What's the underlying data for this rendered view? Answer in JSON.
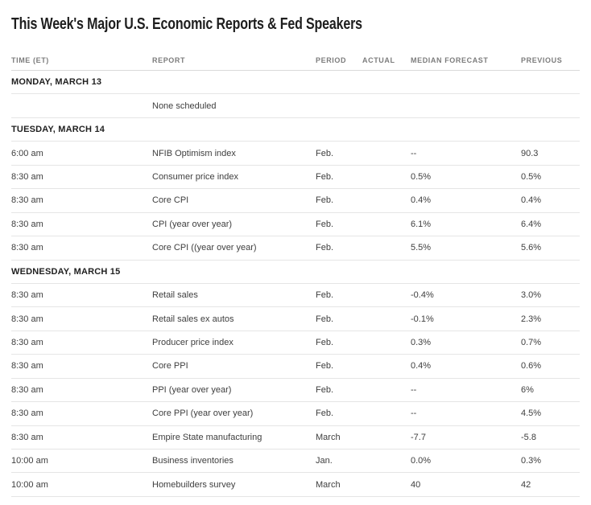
{
  "title": "This Week's Major U.S. Economic Reports & Fed Speakers",
  "table": {
    "headers": [
      "TIME (ET)",
      "REPORT",
      "PERIOD",
      "ACTUAL",
      "MEDIAN FORECAST",
      "PREVIOUS"
    ],
    "rows": [
      {
        "type": "day",
        "label": "MONDAY, MARCH 13"
      },
      {
        "type": "data",
        "time": "",
        "report": "None scheduled",
        "period": "",
        "actual": "",
        "forecast": "",
        "previous": ""
      },
      {
        "type": "day",
        "label": "TUESDAY, MARCH 14"
      },
      {
        "type": "data",
        "time": "6:00 am",
        "report": "NFIB Optimism index",
        "period": "Feb.",
        "actual": "",
        "forecast": "--",
        "previous": "90.3"
      },
      {
        "type": "data",
        "time": "8:30 am",
        "report": "Consumer price index",
        "period": "Feb.",
        "actual": "",
        "forecast": "0.5%",
        "previous": "0.5%"
      },
      {
        "type": "data",
        "time": "8:30 am",
        "report": "Core CPI",
        "period": "Feb.",
        "actual": "",
        "forecast": "0.4%",
        "previous": "0.4%"
      },
      {
        "type": "data",
        "time": "8:30 am",
        "report": "CPI (year over year)",
        "period": "Feb.",
        "actual": "",
        "forecast": "6.1%",
        "previous": "6.4%"
      },
      {
        "type": "data",
        "time": "8:30 am",
        "report": "Core CPI ((year over year)",
        "period": "Feb.",
        "actual": "",
        "forecast": "5.5%",
        "previous": "5.6%"
      },
      {
        "type": "day",
        "label": "WEDNESDAY, MARCH 15"
      },
      {
        "type": "data",
        "time": "8:30 am",
        "report": "Retail sales",
        "period": "Feb.",
        "actual": "",
        "forecast": "-0.4%",
        "previous": "3.0%"
      },
      {
        "type": "data",
        "time": "8:30 am",
        "report": "Retail sales ex autos",
        "period": "Feb.",
        "actual": "",
        "forecast": "-0.1%",
        "previous": "2.3%"
      },
      {
        "type": "data",
        "time": "8:30 am",
        "report": "Producer price index",
        "period": "Feb.",
        "actual": "",
        "forecast": "0.3%",
        "previous": "0.7%"
      },
      {
        "type": "data",
        "time": "8:30 am",
        "report": "Core PPI",
        "period": "Feb.",
        "actual": "",
        "forecast": "0.4%",
        "previous": "0.6%"
      },
      {
        "type": "data",
        "time": "8:30 am",
        "report": "PPI (year over year)",
        "period": "Feb.",
        "actual": "",
        "forecast": "--",
        "previous": "6%"
      },
      {
        "type": "data",
        "time": "8:30 am",
        "report": "Core PPI (year over year)",
        "period": "Feb.",
        "actual": "",
        "forecast": "--",
        "previous": "4.5%"
      },
      {
        "type": "data",
        "time": "8:30 am",
        "report": "Empire State manufacturing",
        "period": "March",
        "actual": "",
        "forecast": "-7.7",
        "previous": "-5.8"
      },
      {
        "type": "data",
        "time": "10:00 am",
        "report": "Business inventories",
        "period": "Jan.",
        "actual": "",
        "forecast": "0.0%",
        "previous": "0.3%"
      },
      {
        "type": "data",
        "time": "10:00 am",
        "report": "Homebuilders survey",
        "period": "March",
        "actual": "",
        "forecast": "40",
        "previous": "42"
      }
    ]
  },
  "chart_data": {
    "type": "table",
    "title": "This Week's Major U.S. Economic Reports & Fed Speakers",
    "columns": [
      "TIME (ET)",
      "REPORT",
      "PERIOD",
      "ACTUAL",
      "MEDIAN FORECAST",
      "PREVIOUS"
    ],
    "sections": [
      {
        "day": "MONDAY, MARCH 13",
        "entries": [
          [
            "",
            "None scheduled",
            "",
            "",
            "",
            ""
          ]
        ]
      },
      {
        "day": "TUESDAY, MARCH 14",
        "entries": [
          [
            "6:00 am",
            "NFIB Optimism index",
            "Feb.",
            "",
            "--",
            "90.3"
          ],
          [
            "8:30 am",
            "Consumer price index",
            "Feb.",
            "",
            "0.5%",
            "0.5%"
          ],
          [
            "8:30 am",
            "Core CPI",
            "Feb.",
            "",
            "0.4%",
            "0.4%"
          ],
          [
            "8:30 am",
            "CPI (year over year)",
            "Feb.",
            "",
            "6.1%",
            "6.4%"
          ],
          [
            "8:30 am",
            "Core CPI ((year over year)",
            "Feb.",
            "",
            "5.5%",
            "5.6%"
          ]
        ]
      },
      {
        "day": "WEDNESDAY, MARCH 15",
        "entries": [
          [
            "8:30 am",
            "Retail sales",
            "Feb.",
            "",
            "-0.4%",
            "3.0%"
          ],
          [
            "8:30 am",
            "Retail sales ex autos",
            "Feb.",
            "",
            "-0.1%",
            "2.3%"
          ],
          [
            "8:30 am",
            "Producer price index",
            "Feb.",
            "",
            "0.3%",
            "0.7%"
          ],
          [
            "8:30 am",
            "Core PPI",
            "Feb.",
            "",
            "0.4%",
            "0.6%"
          ],
          [
            "8:30 am",
            "PPI (year over year)",
            "Feb.",
            "",
            "--",
            "6%"
          ],
          [
            "8:30 am",
            "Core PPI (year over year)",
            "Feb.",
            "",
            "--",
            "4.5%"
          ],
          [
            "8:30 am",
            "Empire State manufacturing",
            "March",
            "",
            "-7.7",
            "-5.8"
          ],
          [
            "10:00 am",
            "Business inventories",
            "Jan.",
            "",
            "0.0%",
            "0.3%"
          ],
          [
            "10:00 am",
            "Homebuilders survey",
            "March",
            "",
            "40",
            "42"
          ]
        ]
      }
    ]
  },
  "colors": {
    "background": "#ffffff",
    "title_text": "#1e1e1e",
    "header_text": "#7c7c7c",
    "day_text": "#1f1f1f",
    "body_text": "#3e3e3e",
    "row_divider": "#e5e5e5",
    "header_divider": "#d9d9d9"
  }
}
